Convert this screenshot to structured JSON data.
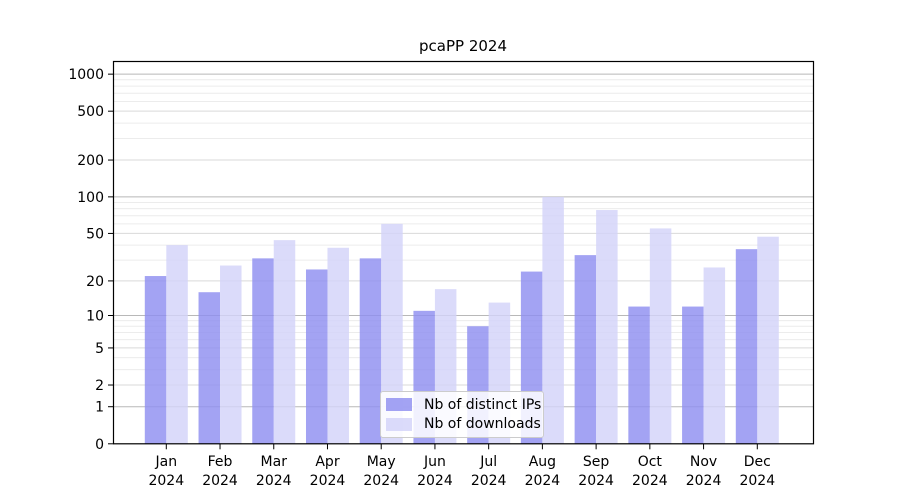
{
  "title": "pcaPP 2024",
  "x_axis": {
    "months": [
      "Jan",
      "Feb",
      "Mar",
      "Apr",
      "May",
      "Jun",
      "Jul",
      "Aug",
      "Sep",
      "Oct",
      "Nov",
      "Dec"
    ],
    "year": "2024"
  },
  "y_axis": {
    "tick_labels": [
      "0",
      "1",
      "2",
      "5",
      "10",
      "20",
      "50",
      "100",
      "200",
      "500",
      "1000"
    ]
  },
  "chart_data": {
    "type": "bar",
    "title": "pcaPP 2024",
    "categories": [
      "Jan 2024",
      "Feb 2024",
      "Mar 2024",
      "Apr 2024",
      "May 2024",
      "Jun 2024",
      "Jul 2024",
      "Aug 2024",
      "Sep 2024",
      "Oct 2024",
      "Nov 2024",
      "Dec 2024"
    ],
    "series": [
      {
        "name": "Nb of distinct IPs",
        "color": "#8f8ff0",
        "values": [
          22,
          16,
          31,
          25,
          31,
          11,
          8,
          24,
          33,
          12,
          12,
          37
        ]
      },
      {
        "name": "Nb of downloads",
        "color": "#d3d3f9",
        "values": [
          40,
          27,
          44,
          38,
          60,
          17,
          13,
          100,
          78,
          55,
          26,
          47
        ]
      }
    ],
    "y_scale": "log10(value+1)",
    "y_ticks": [
      0,
      1,
      2,
      5,
      10,
      20,
      50,
      100,
      200,
      500,
      1000
    ],
    "ylim": [
      0,
      1200
    ],
    "xlabel": "",
    "ylabel": "",
    "grid": "horizontal, log minor lines",
    "legend_position": "lower center"
  },
  "colors": {
    "background": "#ffffff",
    "axis": "#000000",
    "grid_major": "#b8b8b8",
    "grid_mid": "#d9d9d9",
    "grid_minor": "#ececec",
    "bar_opacity": "0.82"
  }
}
